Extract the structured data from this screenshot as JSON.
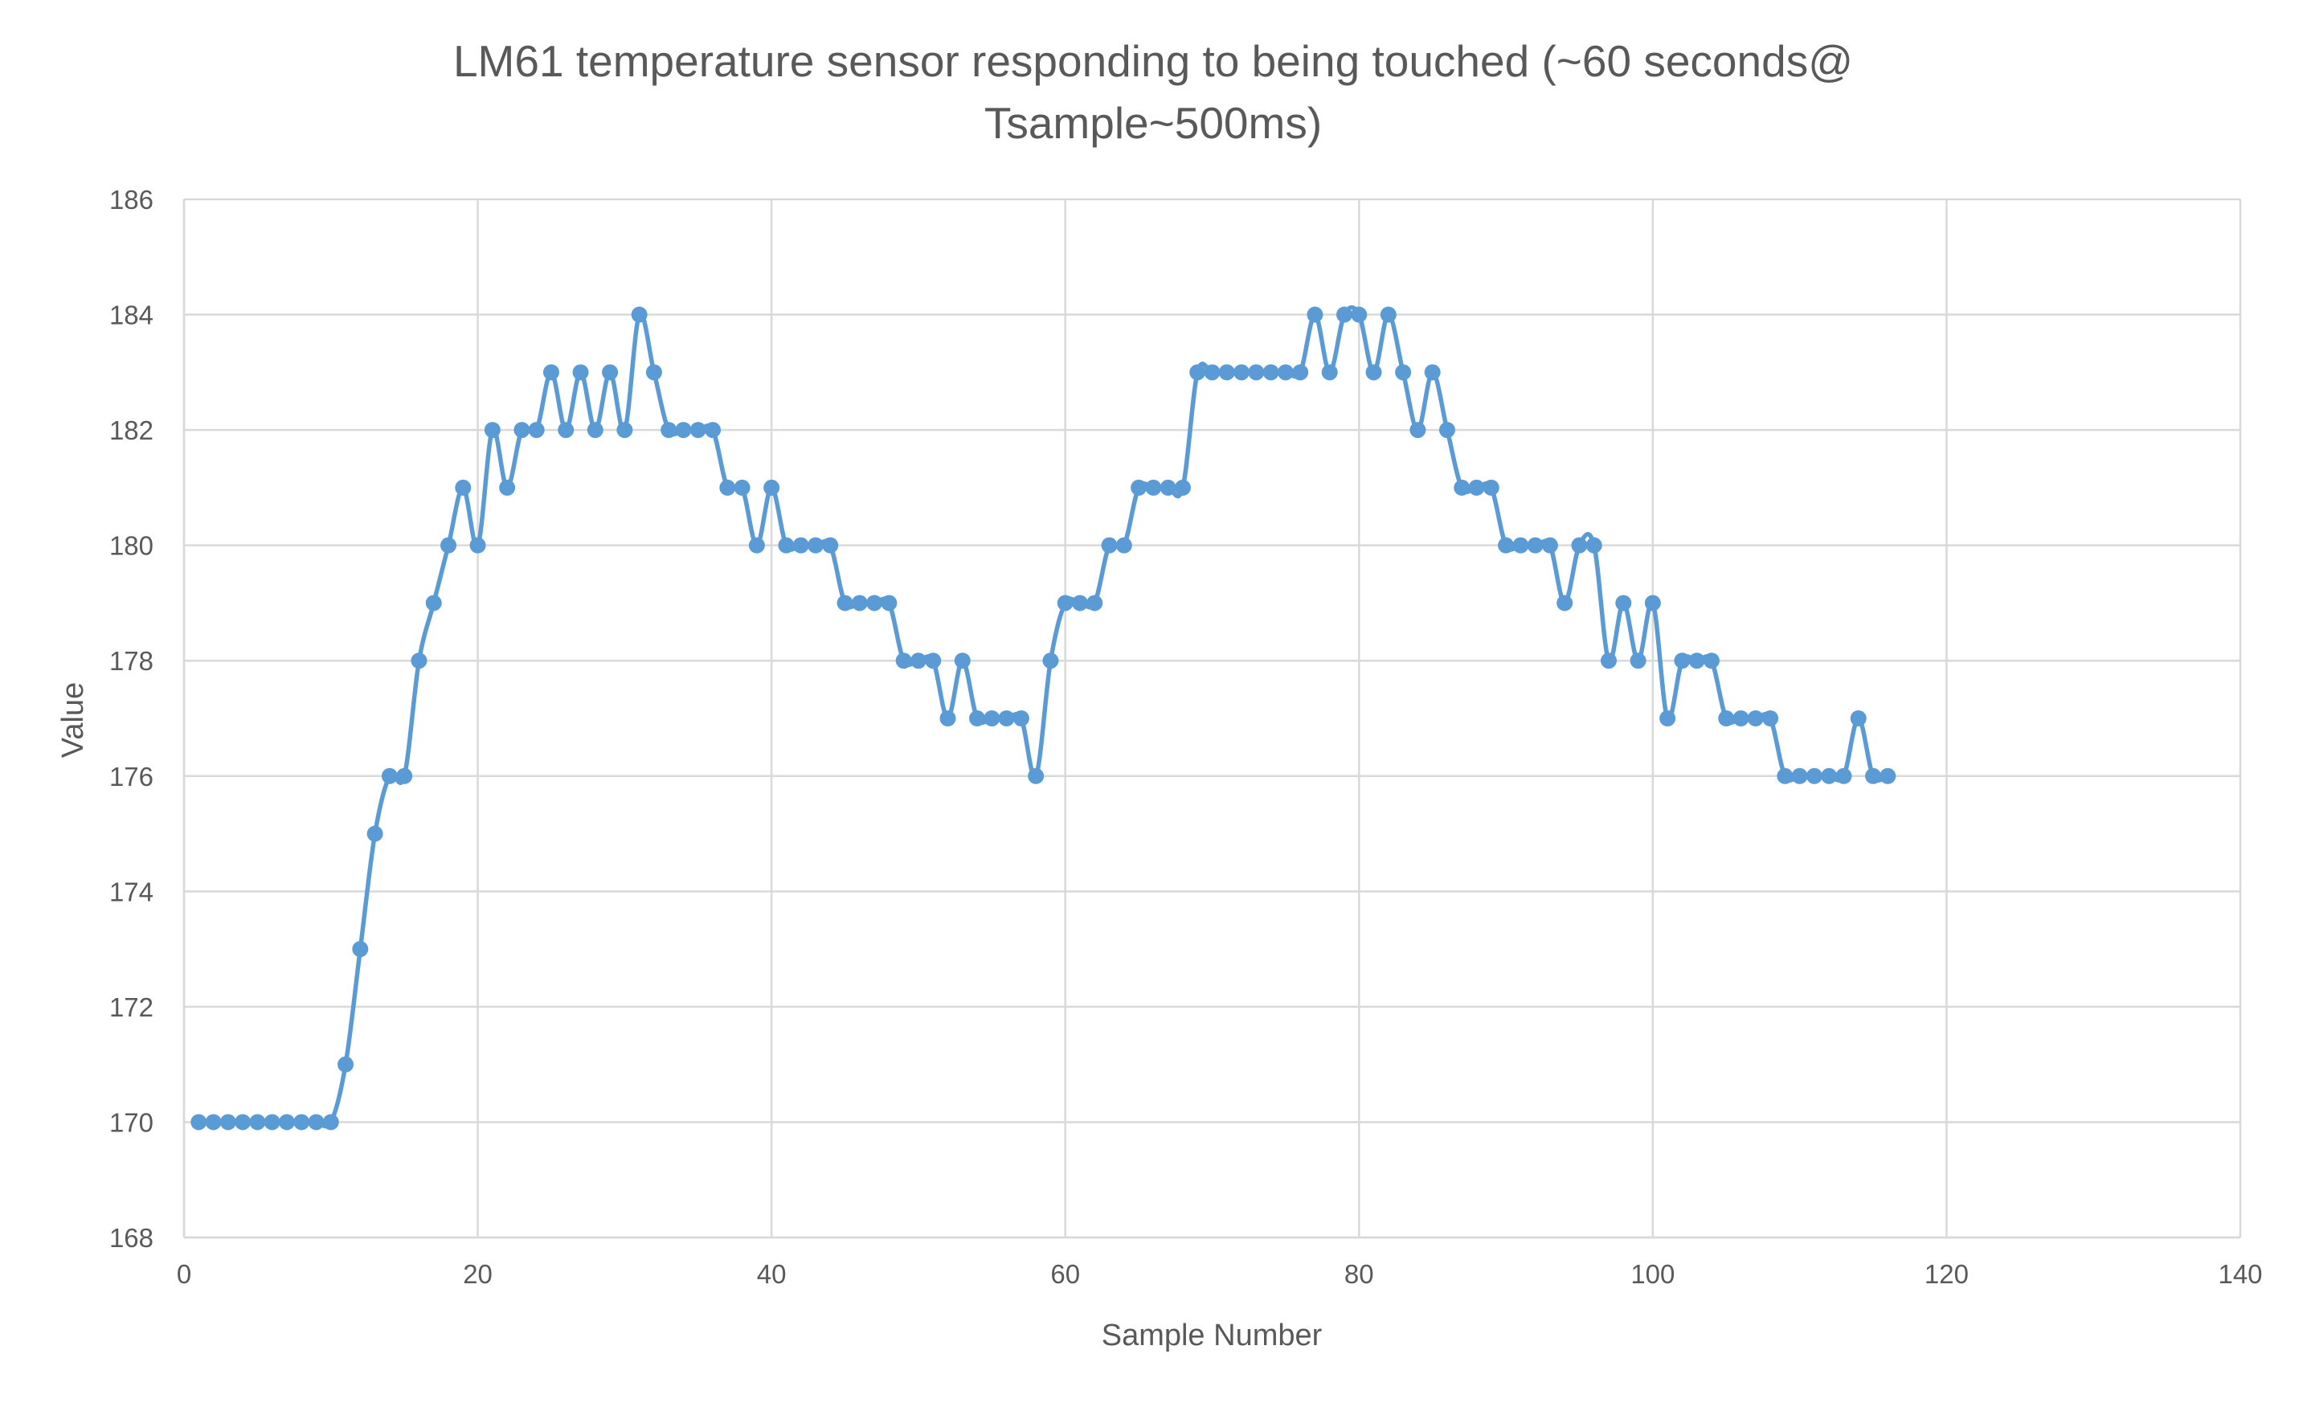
{
  "colors": {
    "series": "#5b9bd5",
    "grid": "#d9d9d9",
    "text": "#595959",
    "background": "#ffffff"
  },
  "chart_data": {
    "type": "line",
    "title_lines": [
      "LM61 temperature sensor responding to being touched (~60 seconds@",
      "Tsample~500ms)"
    ],
    "xlabel": "Sample Number",
    "ylabel": "Value",
    "xlim": [
      0,
      140
    ],
    "ylim": [
      168,
      186
    ],
    "x_ticks": [
      0,
      20,
      40,
      60,
      80,
      100,
      120,
      140
    ],
    "y_ticks": [
      168,
      170,
      172,
      174,
      176,
      178,
      180,
      182,
      184,
      186
    ],
    "grid": true,
    "legend": "none",
    "markers": true,
    "smoothed": true,
    "series": [
      {
        "x": [
          1,
          2,
          3,
          4,
          5,
          6,
          7,
          8,
          9,
          10,
          11,
          12,
          13,
          14,
          15,
          16,
          17,
          18,
          19,
          20,
          21,
          22,
          23,
          24,
          25,
          26,
          27,
          28,
          29,
          30,
          31,
          32,
          33,
          34,
          35,
          36,
          37,
          38,
          39,
          40,
          41,
          42,
          43,
          44,
          45,
          46,
          47,
          48,
          49,
          50,
          51,
          52,
          53,
          54,
          55,
          56,
          57,
          58,
          59,
          60,
          61,
          62,
          63,
          64,
          65,
          66,
          67,
          68,
          69,
          70,
          71,
          72,
          73,
          74,
          75,
          76,
          77,
          78,
          79,
          80,
          81,
          82,
          83,
          84,
          85,
          86,
          87,
          88,
          89,
          90,
          91,
          92,
          93,
          94,
          95,
          96,
          97,
          98,
          99,
          100,
          101,
          102,
          103,
          104,
          105,
          106,
          107,
          108,
          109,
          110,
          111,
          112,
          113,
          114,
          115,
          116
        ],
        "values": [
          170,
          170,
          170,
          170,
          170,
          170,
          170,
          170,
          170,
          170,
          171,
          173,
          175,
          176,
          176,
          178,
          179,
          180,
          181,
          180,
          182,
          181,
          182,
          182,
          183,
          182,
          183,
          182,
          183,
          182,
          184,
          183,
          182,
          182,
          182,
          182,
          181,
          181,
          180,
          181,
          180,
          180,
          180,
          180,
          179,
          179,
          179,
          179,
          178,
          178,
          178,
          177,
          178,
          177,
          177,
          177,
          177,
          176,
          178,
          179,
          179,
          179,
          180,
          180,
          181,
          181,
          181,
          181,
          183,
          183,
          183,
          183,
          183,
          183,
          183,
          183,
          184,
          183,
          184,
          184,
          183,
          184,
          183,
          182,
          183,
          182,
          181,
          181,
          181,
          180,
          180,
          180,
          180,
          179,
          180,
          180,
          178,
          179,
          178,
          179,
          177,
          178,
          178,
          178,
          177,
          177,
          177,
          177,
          176,
          176,
          176,
          176,
          176,
          177,
          176,
          176
        ]
      }
    ]
  }
}
